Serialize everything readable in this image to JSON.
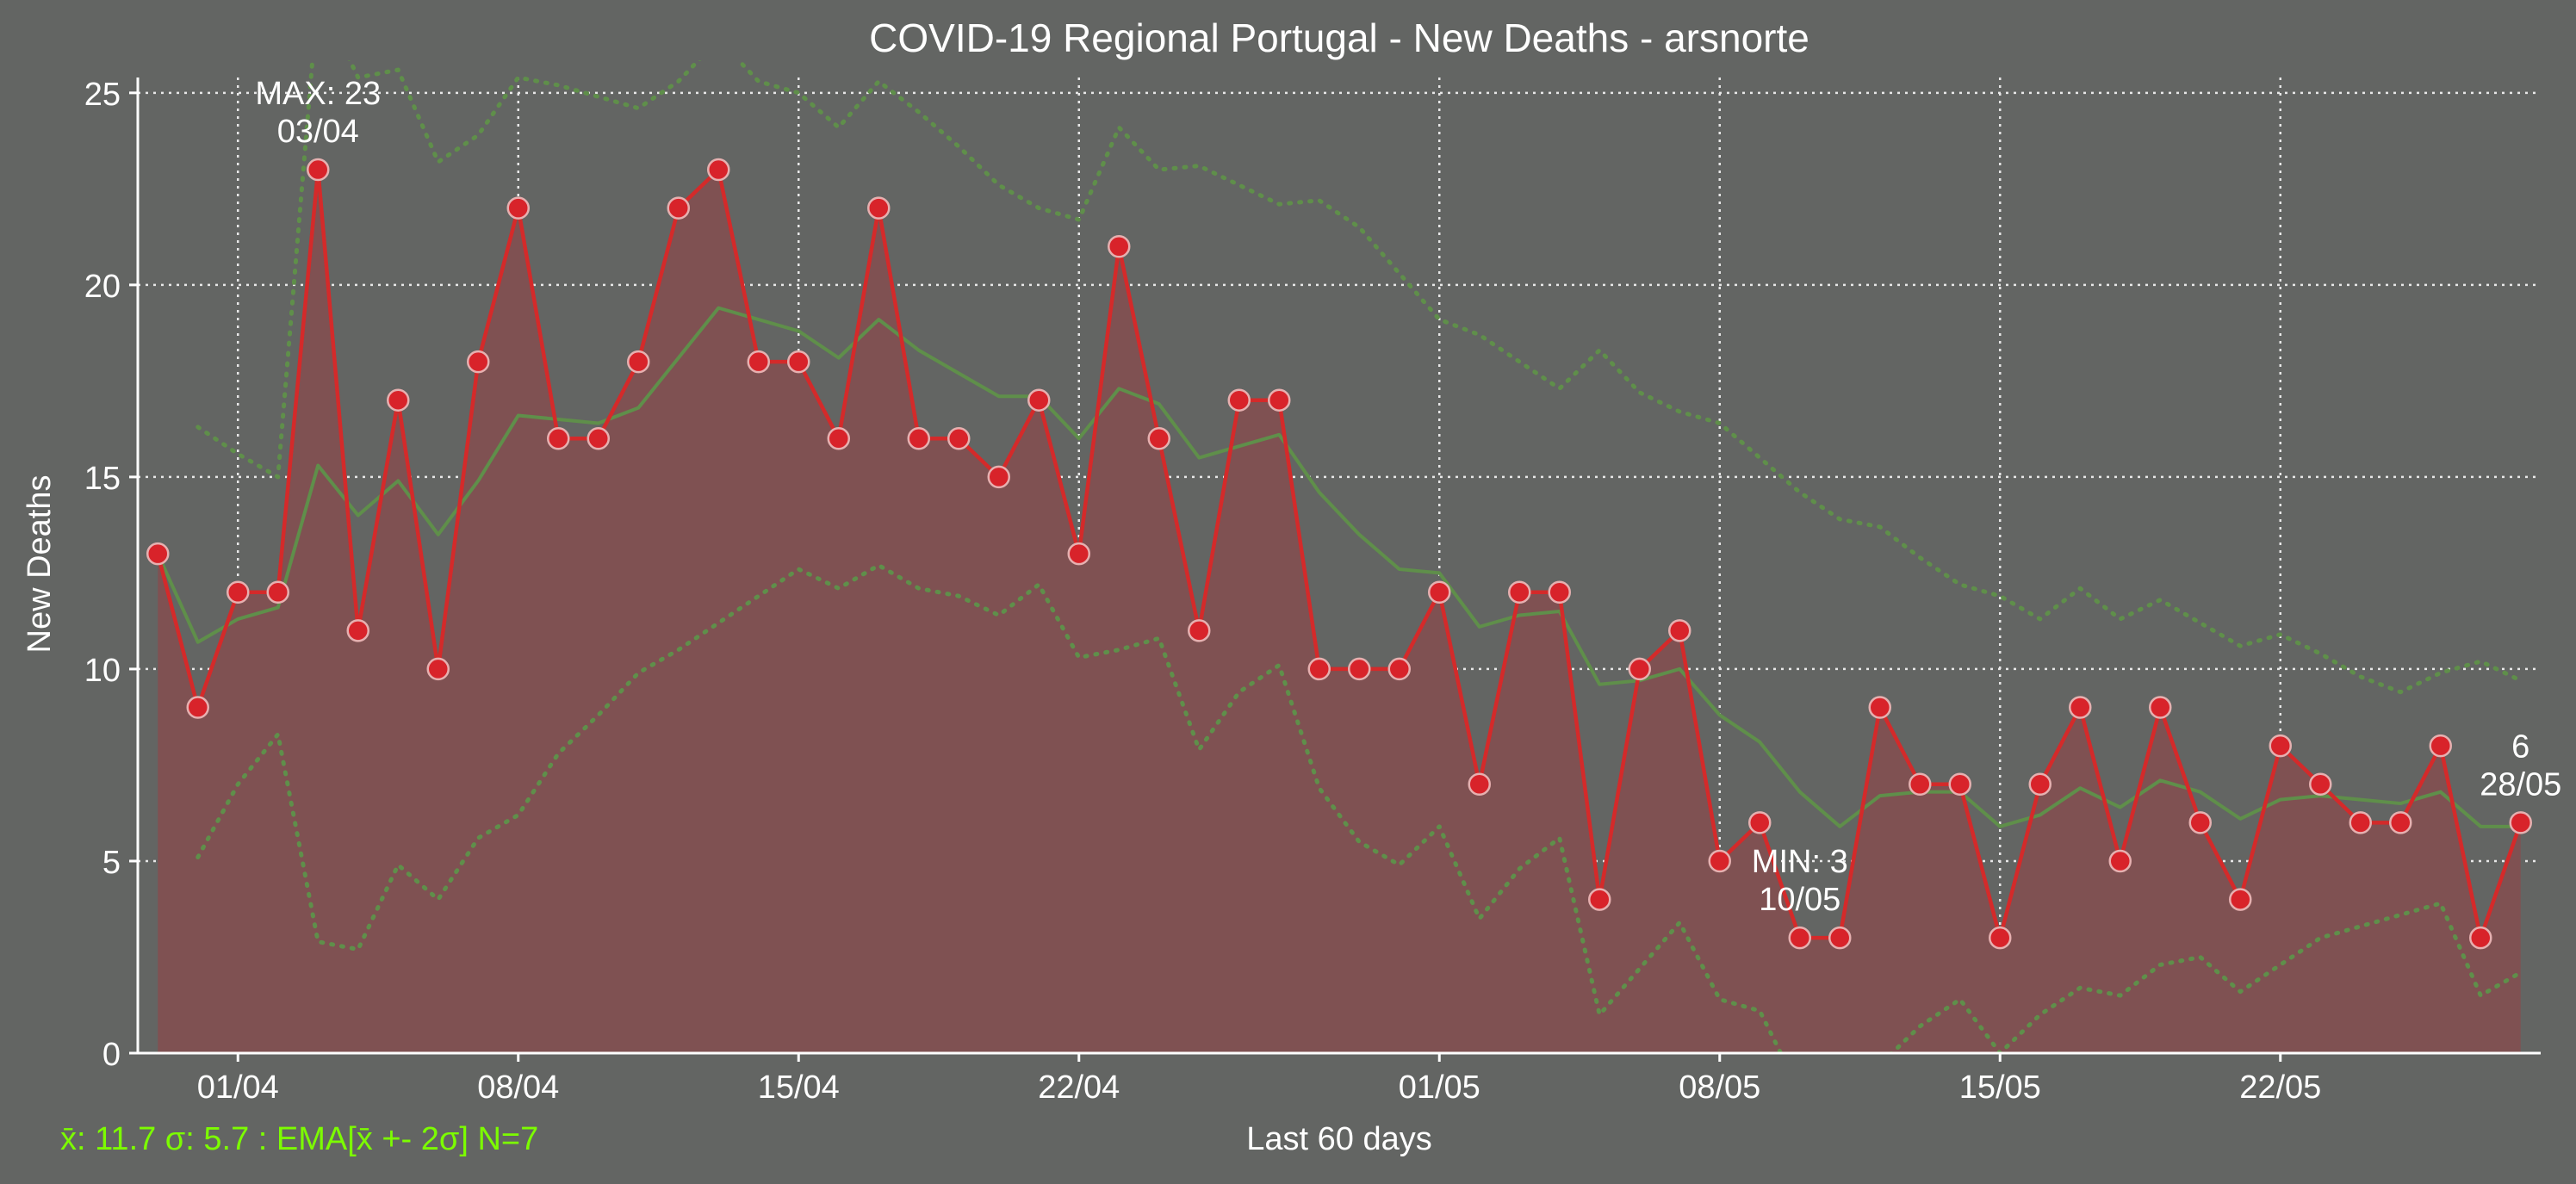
{
  "chart_data": {
    "type": "line",
    "title": "COVID-19 Regional Portugal - New Deaths - arsnorte",
    "xlabel": "Last 60 days",
    "ylabel": "New Deaths",
    "footer": "x̄: 11.7 σ: 5.7 : EMA[x̄ +- 2σ] N=7",
    "ylim": [
      0,
      25.4
    ],
    "yticks": [
      0,
      5,
      10,
      15,
      20,
      25
    ],
    "xlim": [
      -0.5,
      59.5
    ],
    "xticks": [
      {
        "i": 2,
        "label": "01/04"
      },
      {
        "i": 9,
        "label": "08/04"
      },
      {
        "i": 16,
        "label": "15/04"
      },
      {
        "i": 23,
        "label": "22/04"
      },
      {
        "i": 32,
        "label": "01/05"
      },
      {
        "i": 39,
        "label": "08/05"
      },
      {
        "i": 46,
        "label": "15/05"
      },
      {
        "i": 53,
        "label": "22/05"
      }
    ],
    "grid": true,
    "series": [
      {
        "values": [
          13,
          9,
          12,
          12,
          23,
          11,
          17,
          10,
          18,
          22,
          16,
          16,
          18,
          22,
          23,
          18,
          18,
          16,
          22,
          16,
          16,
          15,
          17,
          13,
          21,
          16,
          11,
          17,
          17,
          10,
          10,
          10,
          12,
          7,
          12,
          12,
          4,
          10,
          11,
          5,
          6,
          3,
          3,
          9,
          7,
          7,
          3,
          7,
          9,
          5,
          9,
          6,
          4,
          8,
          7,
          6,
          6,
          8,
          3,
          6
        ],
        "color": "#d42a2a",
        "fill": "#7f5152"
      },
      {
        "values": [
          13,
          10.7,
          11.3,
          11.6,
          15.3,
          14,
          14.9,
          13.5,
          14.9,
          16.6,
          16.5,
          16.4,
          16.8,
          18.1,
          19.4,
          19.1,
          18.8,
          18.1,
          19.1,
          18.3,
          17.7,
          17.1,
          17.1,
          16,
          17.3,
          16.9,
          15.5,
          15.8,
          16.1,
          14.6,
          13.5,
          12.6,
          12.5,
          11.1,
          11.4,
          11.5,
          9.6,
          9.7,
          10,
          8.8,
          8.1,
          6.8,
          5.9,
          6.7,
          6.8,
          6.8,
          5.9,
          6.2,
          6.9,
          6.4,
          7.1,
          6.8,
          6.1,
          6.6,
          6.7,
          6.6,
          6.5,
          6.8,
          5.9,
          5.9
        ],
        "color": "#5f8f4a"
      },
      {
        "values": [
          null,
          16.3,
          15.6,
          15,
          27.6,
          25.4,
          25.6,
          23.2,
          23.9,
          25.4,
          25.2,
          24.9,
          24.6,
          25.3,
          26.4,
          25.3,
          25,
          24.1,
          25.3,
          24.5,
          23.6,
          22.6,
          22,
          21.7,
          24.1,
          23,
          23.1,
          22.6,
          22.1,
          22.2,
          21.5,
          20.3,
          19.1,
          18.7,
          18,
          17.3,
          18.3,
          17.2,
          16.7,
          16.4,
          15.5,
          14.6,
          13.9,
          13.7,
          12.9,
          12.2,
          11.9,
          11.3,
          12.1,
          11.3,
          11.8,
          11.2,
          10.6,
          10.9,
          10.4,
          9.8,
          9.4,
          9.9,
          10.2,
          9.7
        ],
        "color": "#5f8f4a",
        "style": "dotted"
      },
      {
        "values": [
          null,
          5.1,
          7,
          8.3,
          2.9,
          2.7,
          4.9,
          4,
          5.6,
          6.2,
          7.8,
          8.8,
          9.9,
          10.5,
          11.2,
          11.9,
          12.6,
          12.1,
          12.7,
          12.1,
          11.9,
          11.4,
          12.2,
          10.3,
          10.5,
          10.8,
          7.9,
          9.4,
          10.1,
          6.9,
          5.5,
          4.9,
          5.9,
          3.5,
          4.8,
          5.6,
          1,
          2.2,
          3.4,
          1.4,
          1.1,
          -1,
          -1.9,
          -0.3,
          0.7,
          1.4,
          0,
          1,
          1.7,
          1.5,
          2.3,
          2.5,
          1.6,
          2.3,
          3,
          3.3,
          3.6,
          3.9,
          1.5,
          2.1
        ],
        "color": "#5f8f4a",
        "style": "dotted"
      }
    ],
    "annotations": [
      {
        "i": 4,
        "y": 23,
        "lines": [
          "MAX: 23",
          "03/04"
        ],
        "placement": "above"
      },
      {
        "i": 41,
        "y": 3,
        "lines": [
          "MIN: 3",
          "10/05"
        ],
        "placement": "above"
      },
      {
        "i": 59,
        "y": 6,
        "lines": [
          "6",
          "28/05"
        ],
        "placement": "above"
      }
    ]
  }
}
